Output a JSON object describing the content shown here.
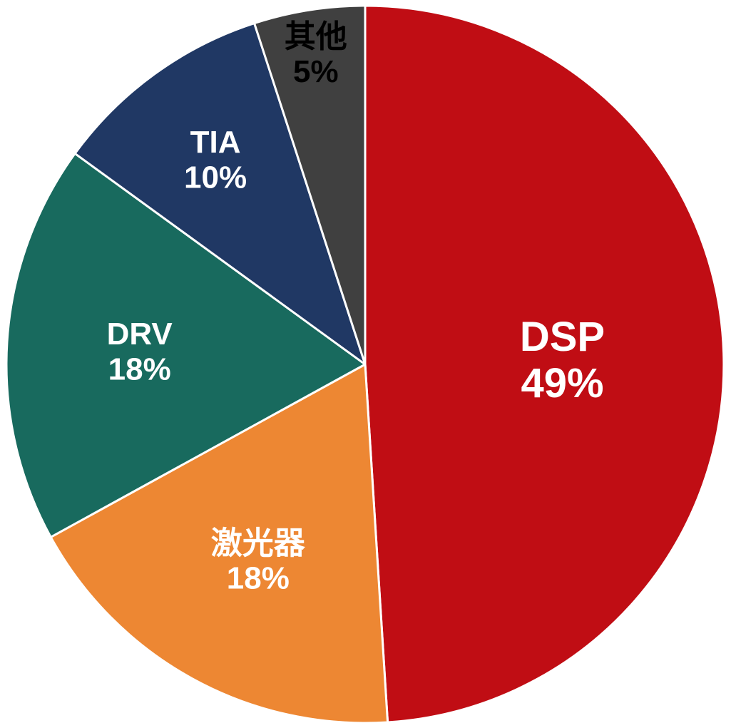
{
  "chart_data": {
    "type": "pie",
    "title": "",
    "start_angle_deg": 0,
    "direction": "clockwise",
    "legend_position": "none",
    "background": "#FFFFFF",
    "stroke_color": "#FFFFFF",
    "stroke_width": 3,
    "slices": [
      {
        "name": "dsp",
        "label": "DSP",
        "value": 49,
        "percent_label": "49%",
        "color": "#C00D14",
        "text_color": "#FFFFFF",
        "label_r": 0.55,
        "font_size": 58
      },
      {
        "name": "laser",
        "label": "激光器",
        "value": 18,
        "percent_label": "18%",
        "color": "#ED8733",
        "text_color": "#FFFFFF",
        "label_r": 0.62,
        "font_size": 44
      },
      {
        "name": "drv",
        "label": "DRV",
        "value": 18,
        "percent_label": "18%",
        "color": "#186A5E",
        "text_color": "#FFFFFF",
        "label_r": 0.63,
        "font_size": 44
      },
      {
        "name": "tia",
        "label": "TIA",
        "value": 10,
        "percent_label": "10%",
        "color": "#203864",
        "text_color": "#FFFFFF",
        "label_r": 0.71,
        "font_size": 44
      },
      {
        "name": "other",
        "label": "其他",
        "value": 5,
        "percent_label": "5%",
        "color": "#404040",
        "text_color": "#000000",
        "label_r": 0.88,
        "font_size": 44
      }
    ]
  }
}
